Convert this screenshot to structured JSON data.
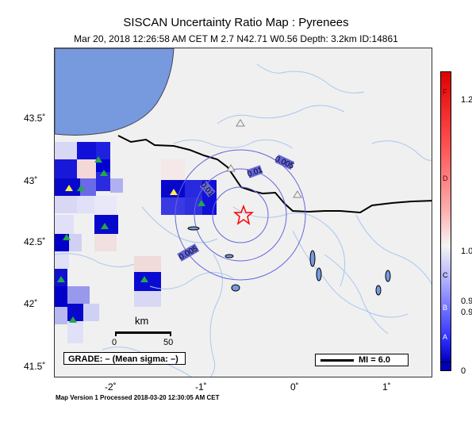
{
  "title": "SISCAN Uncertainty Ratio Map : Pyrenees",
  "subtitle": "Mar 20, 2018 12:26:58 AM CET   M 2.7   N42.71 W0.56   Depth: 3.2km   ID:14861",
  "y_axis_labels": [
    "43.5˚",
    "43˚",
    "42.5˚",
    "42˚",
    "41.5˚"
  ],
  "x_axis_labels": [
    "-2˚",
    "-1˚",
    "0˚",
    "1˚"
  ],
  "contour_labels": [
    "0.005",
    "0.01",
    "0.01",
    "0.005"
  ],
  "scale": {
    "unit": "km",
    "labels": [
      "0",
      "50"
    ]
  },
  "grade_label": "GRADE: – (Mean sigma: –)",
  "mi_label": "MI = 6.0",
  "footer": "Map Version 1 Processed 2018-03-20 12:30:05 AM CET",
  "colorbar": {
    "labels": [
      "1.2",
      "1.0",
      "0.9",
      "0.9",
      "0"
    ],
    "grades": [
      "F",
      "D",
      "C",
      "B",
      "A"
    ]
  },
  "colors": {
    "sea": "#7799dd",
    "border": "#000000",
    "river": "#a8c8ee",
    "contour": "#6666dd",
    "epicenter": "#ff0000"
  }
}
